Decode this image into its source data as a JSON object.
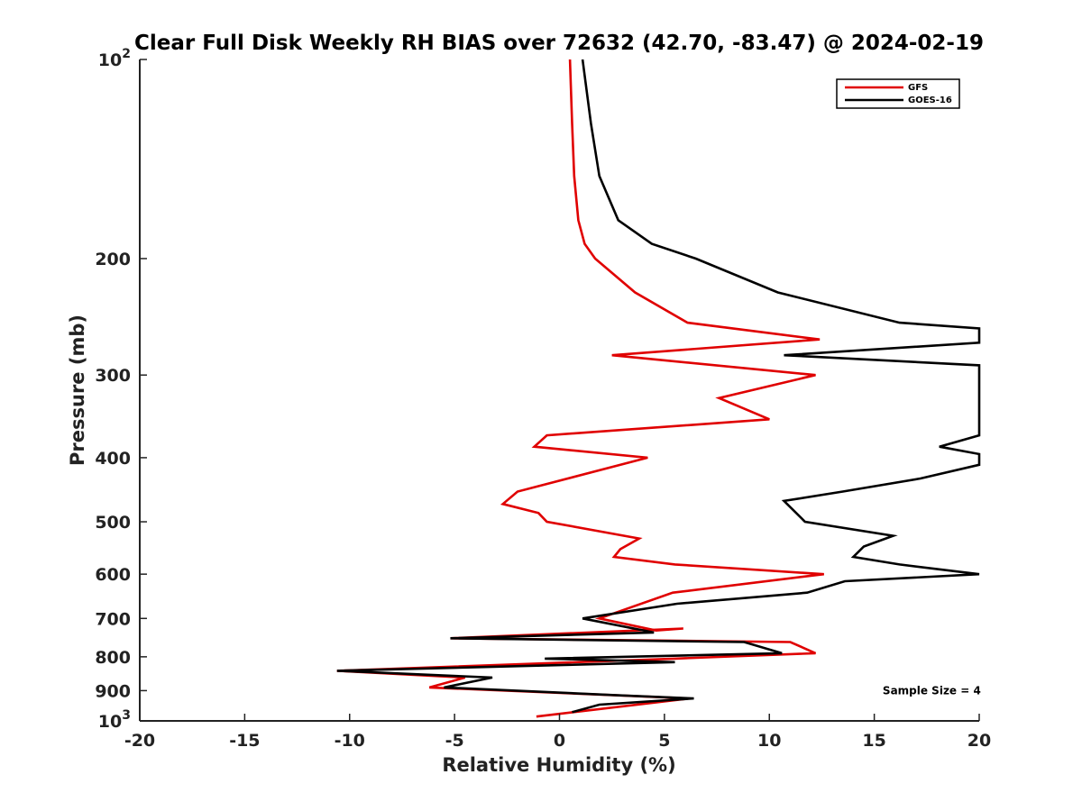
{
  "chart_data": {
    "type": "line",
    "title": "Clear Full Disk Weekly RH BIAS over 72632 (42.70, -83.47) @ 2024-02-19",
    "xlabel": "Relative Humidity (%)",
    "ylabel": "Pressure (mb)",
    "xlim": [
      -20,
      20
    ],
    "ylim": [
      100,
      1000
    ],
    "y_scale": "log",
    "y_reversed": true,
    "grid": false,
    "legend_position": "top-right",
    "x_ticks": [
      -20,
      -15,
      -10,
      -5,
      0,
      5,
      10,
      15,
      20
    ],
    "y_ticks": [
      {
        "value": 100,
        "base": "10",
        "exp": "2"
      },
      {
        "value": 200,
        "label": "200"
      },
      {
        "value": 300,
        "label": "300"
      },
      {
        "value": 400,
        "label": "400"
      },
      {
        "value": 500,
        "label": "500"
      },
      {
        "value": 600,
        "label": "600"
      },
      {
        "value": 700,
        "label": "700"
      },
      {
        "value": 800,
        "label": "800"
      },
      {
        "value": 900,
        "label": "900"
      },
      {
        "value": 1000,
        "base": "10",
        "exp": "3"
      }
    ],
    "series": [
      {
        "name": "GFS",
        "color": "#e00000",
        "points": [
          [
            0.5,
            100
          ],
          [
            0.6,
            125
          ],
          [
            0.7,
            150
          ],
          [
            0.9,
            175
          ],
          [
            1.2,
            190
          ],
          [
            1.7,
            200
          ],
          [
            3.6,
            225
          ],
          [
            6.1,
            250
          ],
          [
            12.4,
            265
          ],
          [
            2.5,
            280
          ],
          [
            12.2,
            300
          ],
          [
            7.6,
            325
          ],
          [
            10.0,
            350
          ],
          [
            -0.6,
            370
          ],
          [
            -1.2,
            385
          ],
          [
            4.2,
            400
          ],
          [
            -2.0,
            450
          ],
          [
            -2.7,
            470
          ],
          [
            -1.0,
            485
          ],
          [
            -0.6,
            500
          ],
          [
            3.8,
            530
          ],
          [
            2.9,
            550
          ],
          [
            2.6,
            565
          ],
          [
            5.5,
            580
          ],
          [
            12.6,
            600
          ],
          [
            5.4,
            640
          ],
          [
            1.9,
            700
          ],
          [
            4.6,
            730
          ],
          [
            5.9,
            725
          ],
          [
            -5.2,
            750
          ],
          [
            11.0,
            760
          ],
          [
            12.2,
            790
          ],
          [
            5.5,
            805
          ],
          [
            -10.6,
            840
          ],
          [
            -4.5,
            860
          ],
          [
            -6.2,
            890
          ],
          [
            2.8,
            915
          ],
          [
            6.2,
            925
          ],
          [
            -1.1,
            985
          ]
        ]
      },
      {
        "name": "GOES-16",
        "color": "#000000",
        "points": [
          [
            1.1,
            100
          ],
          [
            1.5,
            125
          ],
          [
            1.9,
            150
          ],
          [
            2.8,
            175
          ],
          [
            4.4,
            190
          ],
          [
            6.5,
            200
          ],
          [
            10.4,
            225
          ],
          [
            16.2,
            250
          ],
          [
            20,
            255
          ],
          [
            20,
            268
          ],
          [
            10.7,
            280
          ],
          [
            20,
            290
          ],
          [
            20,
            370
          ],
          [
            18.1,
            385
          ],
          [
            20,
            395
          ],
          [
            20,
            410
          ],
          [
            17.2,
            430
          ],
          [
            13.5,
            450
          ],
          [
            10.7,
            465
          ],
          [
            11.7,
            500
          ],
          [
            15.9,
            525
          ],
          [
            14.5,
            545
          ],
          [
            14.0,
            565
          ],
          [
            16.2,
            580
          ],
          [
            20,
            600
          ],
          [
            13.6,
            615
          ],
          [
            11.8,
            640
          ],
          [
            5.6,
            665
          ],
          [
            1.1,
            700
          ],
          [
            4.5,
            735
          ],
          [
            -5.2,
            750
          ],
          [
            8.8,
            760
          ],
          [
            10.6,
            790
          ],
          [
            -0.7,
            805
          ],
          [
            5.5,
            815
          ],
          [
            -10.6,
            840
          ],
          [
            -3.2,
            860
          ],
          [
            -5.5,
            890
          ],
          [
            2.9,
            915
          ],
          [
            6.4,
            925
          ],
          [
            1.9,
            945
          ],
          [
            0.6,
            970
          ]
        ]
      }
    ],
    "annotations": [
      {
        "text": "Sample Size = 4",
        "x": 15.4,
        "y": 900
      }
    ]
  }
}
